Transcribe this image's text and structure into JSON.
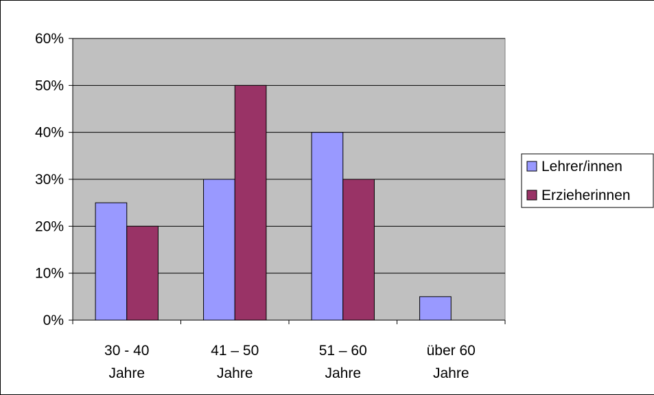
{
  "chart_data": {
    "type": "bar",
    "categories": [
      [
        "30 - 40",
        "Jahre"
      ],
      [
        "41 – 50",
        "Jahre"
      ],
      [
        "51 – 60",
        "Jahre"
      ],
      [
        "über 60",
        "Jahre"
      ]
    ],
    "series": [
      {
        "name": "Lehrer/innen",
        "color": "#9999FF",
        "values": [
          0.25,
          0.3,
          0.4,
          0.05
        ]
      },
      {
        "name": "Erzieherinnen",
        "color": "#993366",
        "values": [
          0.2,
          0.5,
          0.3,
          0.0
        ]
      }
    ],
    "ylim": [
      0,
      0.6
    ],
    "yticks": [
      {
        "value": 0.0,
        "label": "0%"
      },
      {
        "value": 0.1,
        "label": "10%"
      },
      {
        "value": 0.2,
        "label": "20%"
      },
      {
        "value": 0.3,
        "label": "30%"
      },
      {
        "value": 0.4,
        "label": "40%"
      },
      {
        "value": 0.5,
        "label": "50%"
      },
      {
        "value": 0.6,
        "label": "60%"
      }
    ],
    "plot_background": "#C0C0C0",
    "grid": true,
    "legend_position": "right"
  }
}
